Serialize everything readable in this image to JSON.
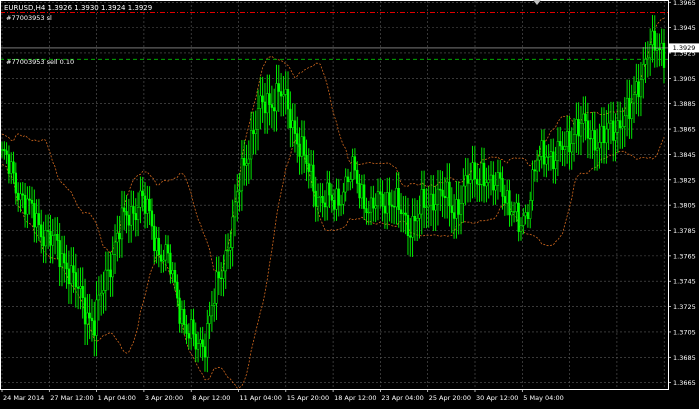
{
  "header": {
    "symbol": "EURUSD,H4",
    "ohlc": "1.3926 1.3930 1.3924 1.3929",
    "order_sl_label": "#77003953 sl",
    "order_label": "#77003953 sell 0.10",
    "current_price": "1.3929"
  },
  "colors": {
    "background": "#000000",
    "grid": "#5a5a5a",
    "candle": "#00ff00",
    "bollinger": "#d2691e",
    "sl_line": "#ff0000",
    "order_line": "#00c000",
    "axis_text": "#ffffff",
    "price_box": "#ffffff"
  },
  "chart_data": {
    "type": "candlestick",
    "y_ticks": [
      "1.3965",
      "1.3945",
      "1.3925",
      "1.3905",
      "1.3885",
      "1.3865",
      "1.3845",
      "1.3825",
      "1.3805",
      "1.3785",
      "1.3765",
      "1.3745",
      "1.3725",
      "1.3705",
      "1.3685",
      "1.3665"
    ],
    "x_ticks": [
      "24 Mar 2014",
      "27 Mar 12:00",
      "1 Apr 04:00",
      "3 Apr 20:00",
      "8 Apr 12:00",
      "11 Apr 04:00",
      "15 Apr 20:00",
      "18 Apr 12:00",
      "23 Apr 04:00",
      "25 Apr 20:00",
      "30 Apr 12:00",
      "5 May 04:00"
    ],
    "ylim": [
      1.366,
      1.3966
    ],
    "sl_price": 1.3957,
    "order_price": 1.392,
    "last_price": 1.3929,
    "close_path": [
      [
        0,
        1.3845
      ],
      [
        4,
        1.383
      ],
      [
        8,
        1.3815
      ],
      [
        12,
        1.38
      ],
      [
        16,
        1.379
      ],
      [
        20,
        1.378
      ],
      [
        24,
        1.377
      ],
      [
        28,
        1.376
      ],
      [
        32,
        1.374
      ],
      [
        36,
        1.3725
      ],
      [
        40,
        1.3712
      ],
      [
        44,
        1.374
      ],
      [
        48,
        1.377
      ],
      [
        52,
        1.379
      ],
      [
        56,
        1.38
      ],
      [
        60,
        1.381
      ],
      [
        64,
        1.3795
      ],
      [
        68,
        1.377
      ],
      [
        72,
        1.376
      ],
      [
        76,
        1.3735
      ],
      [
        80,
        1.3705
      ],
      [
        84,
        1.3695
      ],
      [
        88,
        1.37
      ],
      [
        92,
        1.373
      ],
      [
        96,
        1.376
      ],
      [
        100,
        1.379
      ],
      [
        104,
        1.383
      ],
      [
        108,
        1.386
      ],
      [
        112,
        1.388
      ],
      [
        116,
        1.3888
      ],
      [
        120,
        1.3895
      ],
      [
        124,
        1.388
      ],
      [
        128,
        1.386
      ],
      [
        132,
        1.3835
      ],
      [
        136,
        1.3815
      ],
      [
        140,
        1.381
      ],
      [
        144,
        1.3805
      ],
      [
        148,
        1.382
      ],
      [
        152,
        1.383
      ],
      [
        156,
        1.3815
      ],
      [
        160,
        1.38
      ],
      [
        164,
        1.3808
      ],
      [
        168,
        1.3812
      ],
      [
        172,
        1.38
      ],
      [
        176,
        1.379
      ],
      [
        180,
        1.3796
      ],
      [
        184,
        1.3805
      ],
      [
        188,
        1.3815
      ],
      [
        192,
        1.381
      ],
      [
        196,
        1.3802
      ],
      [
        200,
        1.3815
      ],
      [
        204,
        1.3828
      ],
      [
        208,
        1.3832
      ],
      [
        212,
        1.3815
      ],
      [
        216,
        1.383
      ],
      [
        220,
        1.38
      ],
      [
        224,
        1.379
      ],
      [
        228,
        1.3805
      ],
      [
        232,
        1.3838
      ],
      [
        236,
        1.385
      ],
      [
        240,
        1.384
      ],
      [
        244,
        1.3852
      ],
      [
        248,
        1.3865
      ],
      [
        252,
        1.3866
      ],
      [
        256,
        1.386
      ],
      [
        260,
        1.3855
      ],
      [
        264,
        1.3865
      ],
      [
        268,
        1.3872
      ],
      [
        272,
        1.3875
      ],
      [
        276,
        1.3905
      ],
      [
        280,
        1.3925
      ],
      [
        284,
        1.393
      ],
      [
        287,
        1.3929
      ]
    ]
  }
}
